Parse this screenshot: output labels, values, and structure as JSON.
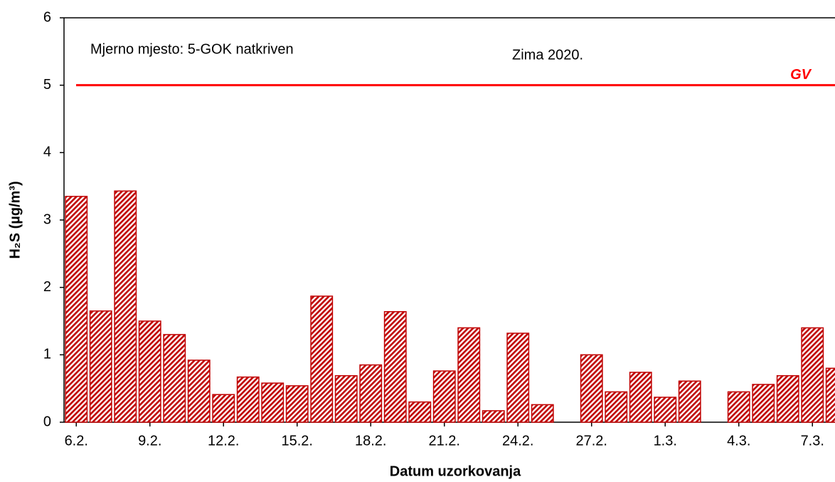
{
  "chart_data": {
    "type": "bar",
    "annotations": [
      "Mjerno mjesto: 5-GOK natkriven",
      "Zima 2020."
    ],
    "y_label": "H₂S (µg/m³)",
    "x_label": "Datum uzorkovanja",
    "categories": [
      "6.2.",
      null,
      null,
      "9.2.",
      null,
      null,
      "12.2.",
      null,
      null,
      "15.2.",
      null,
      null,
      "18.2.",
      null,
      null,
      "21.2.",
      null,
      null,
      "24.2.",
      null,
      null,
      "27.2.",
      null,
      null,
      "1.3.",
      null,
      null,
      "4.3.",
      null,
      null,
      "7.3.",
      null
    ],
    "values": [
      3.35,
      1.65,
      3.43,
      1.5,
      1.3,
      0.92,
      0.41,
      0.67,
      0.58,
      0.54,
      1.87,
      0.69,
      0.85,
      1.64,
      0.3,
      0.76,
      1.4,
      0.17,
      1.32,
      0.26,
      null,
      1.0,
      0.45,
      0.74,
      0.37,
      0.61,
      null,
      0.45,
      0.56,
      0.69,
      1.4,
      0.8
    ],
    "color": "#c00000",
    "ylim": [
      0,
      6
    ],
    "yticks": [
      0,
      1,
      2,
      3,
      4,
      5,
      6
    ],
    "reference_line": {
      "value": 5,
      "label": "GV",
      "color": "#ff0000"
    }
  }
}
